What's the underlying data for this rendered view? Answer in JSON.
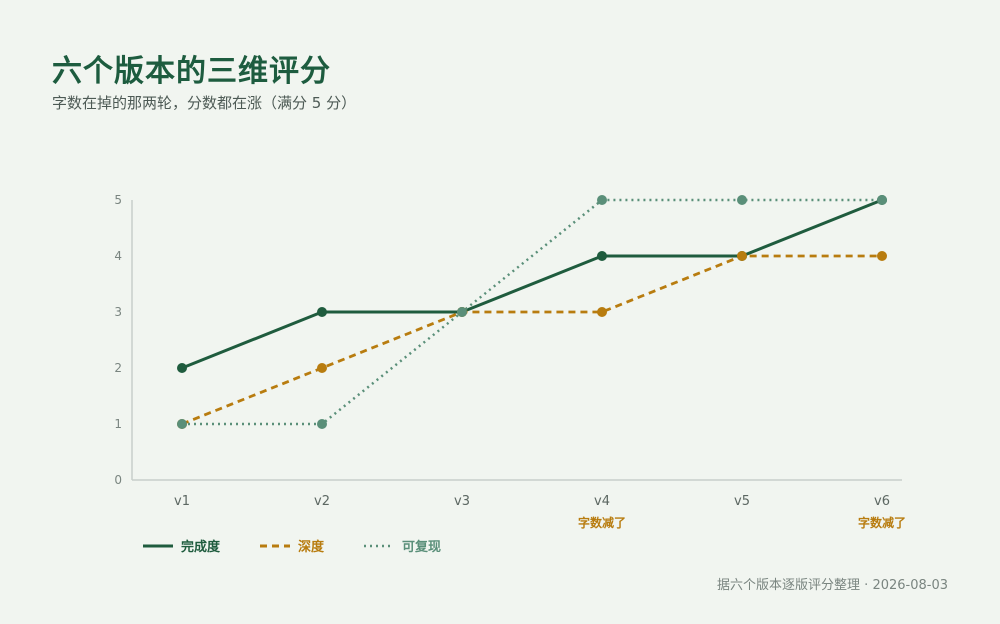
{
  "title": "六个版本的三维评分",
  "subtitle": "字数在掉的那两轮，分数都在涨（满分 5 分）",
  "footer": "据六个版本逐版评分整理 · 2026-08-03",
  "colors": {
    "background": "#f1f5f0",
    "completeness": "#1f5c3e",
    "depth": "#b87c0f",
    "reproducibility": "#5a8f79",
    "axis": "#c7cfca",
    "tick_label": "#7a8580"
  },
  "chart_data": {
    "type": "line",
    "categories": [
      "v1",
      "v2",
      "v3",
      "v4",
      "v5",
      "v6"
    ],
    "ylim": [
      0,
      5
    ],
    "y_ticks": [
      0,
      1,
      2,
      3,
      4,
      5
    ],
    "grid": false,
    "legend_position": "bottom-left",
    "series": [
      {
        "name": "完成度",
        "values": [
          2,
          3,
          3,
          4,
          4,
          5
        ],
        "color": "#1f5c3e",
        "style": "solid"
      },
      {
        "name": "深度",
        "values": [
          1,
          2,
          3,
          3,
          4,
          4
        ],
        "color": "#b87c0f",
        "style": "dashed"
      },
      {
        "name": "可复现",
        "values": [
          1,
          1,
          3,
          5,
          5,
          5
        ],
        "color": "#5a8f79",
        "style": "dotted"
      }
    ],
    "annotations": [
      {
        "category": "v4",
        "text": "字数减了"
      },
      {
        "category": "v6",
        "text": "字数减了"
      }
    ]
  }
}
